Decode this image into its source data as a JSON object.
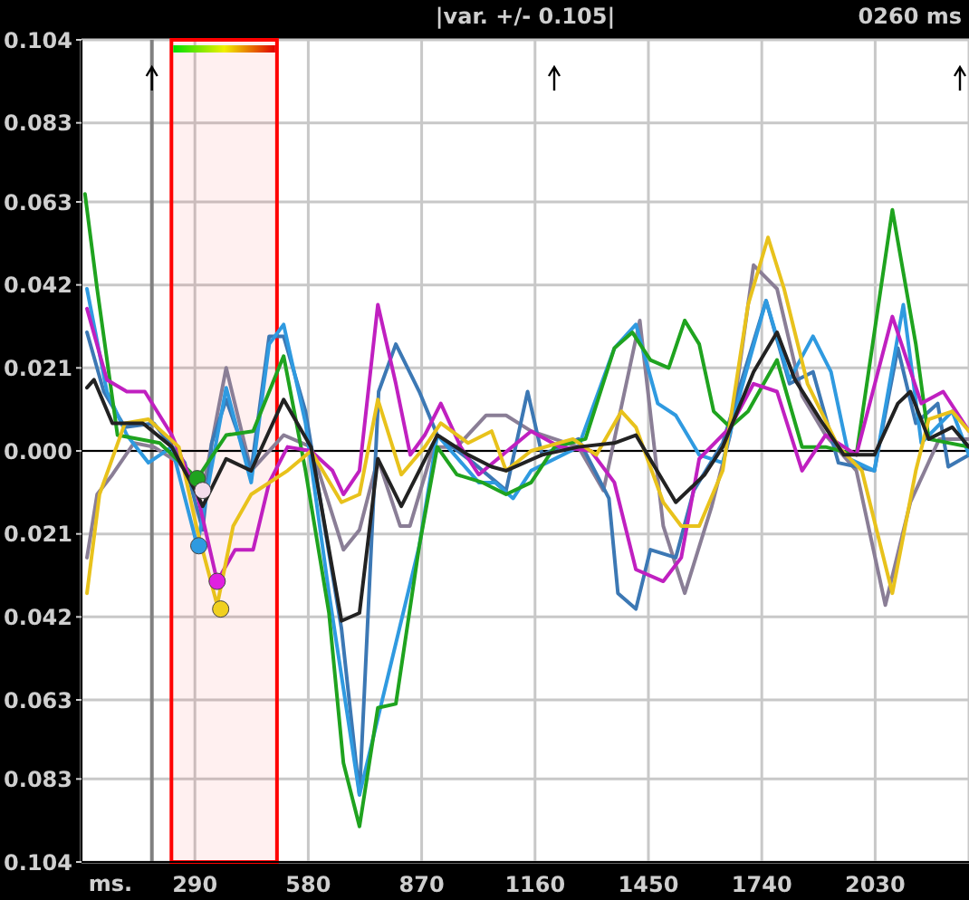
{
  "chart_data": {
    "type": "line",
    "xlabel": "ms.",
    "annotations": [
      "|var. +/- 0.105|",
      "0260 ms"
    ],
    "xlim": [
      0,
      2270
    ],
    "ylim": [
      -0.104,
      0.104
    ],
    "xticks": [
      290,
      580,
      870,
      1160,
      1450,
      1740,
      2030
    ],
    "yticks": [
      {
        "value": 0.104,
        "label": "0.104"
      },
      {
        "value": 0.083,
        "label": "0.083"
      },
      {
        "value": 0.063,
        "label": "0.063"
      },
      {
        "value": 0.042,
        "label": "0.042"
      },
      {
        "value": 0.021,
        "label": "0.021"
      },
      {
        "value": 0,
        "label": "0.000"
      },
      {
        "value": -0.021,
        "label": "0.021"
      },
      {
        "value": -0.042,
        "label": "0.042"
      },
      {
        "value": -0.063,
        "label": "0.063"
      },
      {
        "value": -0.083,
        "label": "0.083"
      },
      {
        "value": -0.104,
        "label": "0.104"
      }
    ],
    "grid": true,
    "ref_lines": [
      {
        "axis": "x",
        "value": 180,
        "color": "#808080"
      },
      {
        "axis": "y",
        "value": 0,
        "color": "#000000"
      }
    ],
    "bands": [
      {
        "axis": "x",
        "from": 230,
        "to": 500,
        "color": "#ff0000"
      }
    ],
    "series": [
      {
        "color": "#8a7e96",
        "x": [
          14,
          40,
          79,
          134,
          185,
          249,
          310,
          370,
          434,
          517,
          587,
          670,
          711,
          758,
          815,
          840,
          900,
          960,
          1035,
          1086,
          1150,
          1271,
          1335,
          1428,
          1488,
          1543,
          1612,
          1659,
          1719,
          1779,
          1843,
          1903,
          1982,
          2056,
          2120,
          2194,
          2270
        ],
        "values": [
          -0.027,
          -0.011,
          -0.006,
          0.002,
          0.001,
          -0.003,
          -0.01,
          0.021,
          -0.005,
          0.004,
          0.001,
          -0.025,
          -0.02,
          -0.002,
          -0.019,
          -0.019,
          0.001,
          0.001,
          0.009,
          0.009,
          0.005,
          0.001,
          -0.01,
          0.033,
          -0.019,
          -0.036,
          -0.014,
          0.004,
          0.047,
          0.041,
          0.014,
          0.004,
          -0.005,
          -0.039,
          -0.013,
          0.003,
          0.003
        ]
      },
      {
        "color": "#3c78b4",
        "x": [
          14,
          57,
          111,
          185,
          264,
          310,
          333,
          370,
          434,
          480,
          517,
          573,
          665,
          711,
          760,
          804,
          864,
          910,
          1002,
          1086,
          1141,
          1178,
          1271,
          1349,
          1372,
          1418,
          1455,
          1520,
          1566,
          1640,
          1686,
          1751,
          1811,
          1871,
          1936,
          2028,
          2088,
          2134,
          2190,
          2217,
          2270
        ],
        "values": [
          0.03,
          0.015,
          0.006,
          0.007,
          -0.003,
          -0.02,
          0.002,
          0.013,
          -0.005,
          0.029,
          0.029,
          0.01,
          -0.045,
          -0.087,
          0.015,
          0.027,
          0.015,
          0.004,
          -0.003,
          -0.01,
          0.015,
          -0.001,
          0.003,
          -0.012,
          -0.036,
          -0.04,
          -0.025,
          -0.027,
          -0.01,
          0.002,
          0.017,
          0.038,
          0.017,
          0.02,
          -0.003,
          -0.005,
          0.026,
          0.007,
          0.012,
          -0.004,
          -0.001
        ]
      },
      {
        "color": "#2f9ae0",
        "x": [
          14,
          65,
          116,
          171,
          231,
          296,
          370,
          434,
          480,
          517,
          573,
          633,
          711,
          864,
          910,
          1016,
          1058,
          1104,
          1150,
          1271,
          1363,
          1418,
          1474,
          1520,
          1580,
          1640,
          1686,
          1751,
          1811,
          1871,
          1917,
          1964,
          2028,
          2102,
          2148,
          2227,
          2270
        ],
        "values": [
          0.041,
          0.015,
          0.004,
          -0.003,
          0.001,
          -0.024,
          0.016,
          -0.008,
          0.027,
          0.032,
          0.007,
          -0.036,
          -0.087,
          -0.024,
          0.004,
          -0.008,
          -0.008,
          -0.012,
          -0.005,
          0.001,
          0.026,
          0.032,
          0.012,
          0.009,
          -0.001,
          -0.003,
          0.015,
          0.038,
          0.018,
          0.029,
          0.02,
          -0.002,
          -0.005,
          0.037,
          0.002,
          0.01,
          -0.001
        ]
      },
      {
        "color": "#1fa31f",
        "x": [
          9,
          40,
          92,
          200,
          296,
          370,
          439,
          517,
          573,
          633,
          670,
          711,
          758,
          804,
          864,
          910,
          960,
          1026,
          1086,
          1150,
          1210,
          1289,
          1363,
          1409,
          1455,
          1502,
          1543,
          1580,
          1617,
          1659,
          1705,
          1779,
          1843,
          1903,
          1982,
          2074,
          2134,
          2167,
          2270
        ],
        "values": [
          0.065,
          0.041,
          0.004,
          0.002,
          -0.007,
          0.004,
          0.005,
          0.024,
          -0.005,
          -0.041,
          -0.079,
          -0.095,
          -0.065,
          -0.064,
          -0.024,
          0.001,
          -0.006,
          -0.008,
          -0.011,
          -0.008,
          0.001,
          0.003,
          0.026,
          0.03,
          0.023,
          0.021,
          0.033,
          0.027,
          0.01,
          0.006,
          0.01,
          0.023,
          0.001,
          0.001,
          -0.001,
          0.061,
          0.027,
          0.003,
          0.001
        ]
      },
      {
        "color": "#c020c0",
        "x": [
          14,
          65,
          116,
          162,
          231,
          296,
          347,
          393,
          439,
          480,
          527,
          587,
          642,
          670,
          711,
          758,
          804,
          841,
          878,
          919,
          970,
          1016,
          1150,
          1224,
          1303,
          1363,
          1418,
          1488,
          1534,
          1580,
          1659,
          1719,
          1779,
          1843,
          1903,
          1982,
          2074,
          2148,
          2204,
          2270
        ],
        "values": [
          0.036,
          0.018,
          0.015,
          0.015,
          0.004,
          -0.011,
          -0.033,
          -0.025,
          -0.025,
          -0.008,
          0.001,
          0,
          -0.005,
          -0.011,
          -0.005,
          0.037,
          0.017,
          -0.001,
          0.004,
          0.012,
          0.001,
          -0.006,
          0.005,
          0.001,
          0,
          -0.008,
          -0.03,
          -0.033,
          -0.027,
          -0.002,
          0.006,
          0.017,
          0.015,
          -0.005,
          0.004,
          -0.001,
          0.034,
          0.012,
          0.015,
          0.005
        ]
      },
      {
        "color": "#e8c21c",
        "x": [
          14,
          46,
          111,
          171,
          249,
          296,
          347,
          388,
          434,
          527,
          587,
          665,
          711,
          758,
          818,
          878,
          919,
          989,
          1049,
          1086,
          1150,
          1257,
          1317,
          1381,
          1418,
          1488,
          1534,
          1580,
          1640,
          1705,
          1756,
          1797,
          1857,
          1936,
          1996,
          2074,
          2134,
          2167,
          2227,
          2270
        ],
        "values": [
          -0.036,
          -0.011,
          0.007,
          0.008,
          0.001,
          -0.02,
          -0.039,
          -0.019,
          -0.011,
          -0.005,
          0,
          -0.013,
          -0.011,
          0.013,
          -0.006,
          0.001,
          0.007,
          0.002,
          0.005,
          -0.005,
          0,
          0.003,
          -0.001,
          0.01,
          0.006,
          -0.013,
          -0.019,
          -0.019,
          -0.005,
          0.037,
          0.054,
          0.041,
          0.017,
          0.001,
          -0.005,
          -0.036,
          -0.005,
          0.008,
          0.01,
          0.005
        ]
      },
      {
        "color": "#222222",
        "x": [
          14,
          32,
          79,
          157,
          231,
          296,
          310,
          370,
          434,
          517,
          587,
          665,
          711,
          758,
          818,
          910,
          989,
          1049,
          1086,
          1178,
          1271,
          1363,
          1418,
          1520,
          1594,
          1640,
          1719,
          1779,
          1825,
          1889,
          1950,
          2028,
          2088,
          2120,
          2167,
          2227,
          2270
        ],
        "values": [
          0.016,
          0.018,
          0.007,
          0.007,
          0.001,
          -0.011,
          -0.014,
          -0.002,
          -0.005,
          0.013,
          0.001,
          -0.043,
          -0.041,
          -0.002,
          -0.014,
          0.004,
          -0.001,
          -0.004,
          -0.005,
          -0.001,
          0.001,
          0.002,
          0.004,
          -0.013,
          -0.006,
          0.001,
          0.02,
          0.03,
          0.018,
          0.008,
          -0.001,
          -0.001,
          0.012,
          0.015,
          0.003,
          0.006,
          0.001
        ]
      },
      {
        "type": "scatter",
        "x": [
          296,
          300,
          310,
          347,
          356
        ],
        "values": [
          -0.007,
          -0.024,
          -0.01,
          -0.033,
          -0.04
        ],
        "colors": [
          "#1fa31f",
          "#2f9ae0",
          "#f4dcec",
          "#e020e0",
          "#f0d020"
        ]
      }
    ]
  }
}
